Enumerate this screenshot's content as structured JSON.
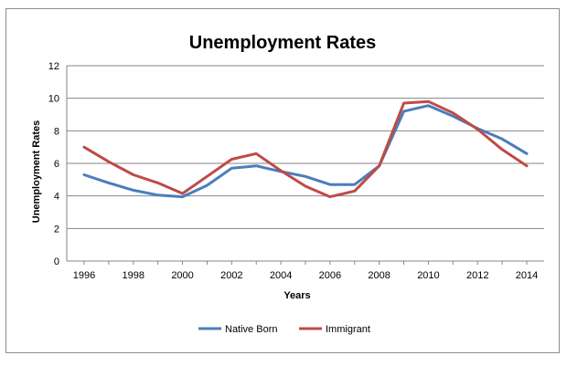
{
  "chart_data": {
    "type": "line",
    "title": "Unemployment Rates",
    "xlabel": "Years",
    "ylabel": "Unemployment Rates",
    "x": [
      1996,
      1997,
      1998,
      1999,
      2000,
      2001,
      2002,
      2003,
      2004,
      2005,
      2006,
      2007,
      2008,
      2009,
      2010,
      2011,
      2012,
      2013,
      2014
    ],
    "x_ticks": [
      "1996",
      "1998",
      "2000",
      "2002",
      "2004",
      "2006",
      "2008",
      "2010",
      "2012",
      "2014"
    ],
    "y_ticks": [
      "0",
      "2",
      "4",
      "6",
      "8",
      "10",
      "12"
    ],
    "ylim": [
      0,
      12
    ],
    "grid": "horizontal",
    "legend_position": "bottom",
    "series": [
      {
        "name": "Native Born",
        "color": "#4a7ebb",
        "values": [
          5.3,
          4.8,
          4.35,
          4.05,
          3.95,
          4.65,
          5.7,
          5.85,
          5.5,
          5.2,
          4.7,
          4.7,
          5.85,
          9.2,
          9.55,
          8.9,
          8.15,
          7.5,
          6.6
        ]
      },
      {
        "name": "Immigrant",
        "color": "#be4b48",
        "values": [
          7.0,
          6.1,
          5.3,
          4.8,
          4.15,
          5.2,
          6.25,
          6.6,
          5.55,
          4.6,
          3.95,
          4.3,
          5.85,
          9.7,
          9.8,
          9.1,
          8.1,
          6.85,
          5.85
        ]
      }
    ]
  }
}
